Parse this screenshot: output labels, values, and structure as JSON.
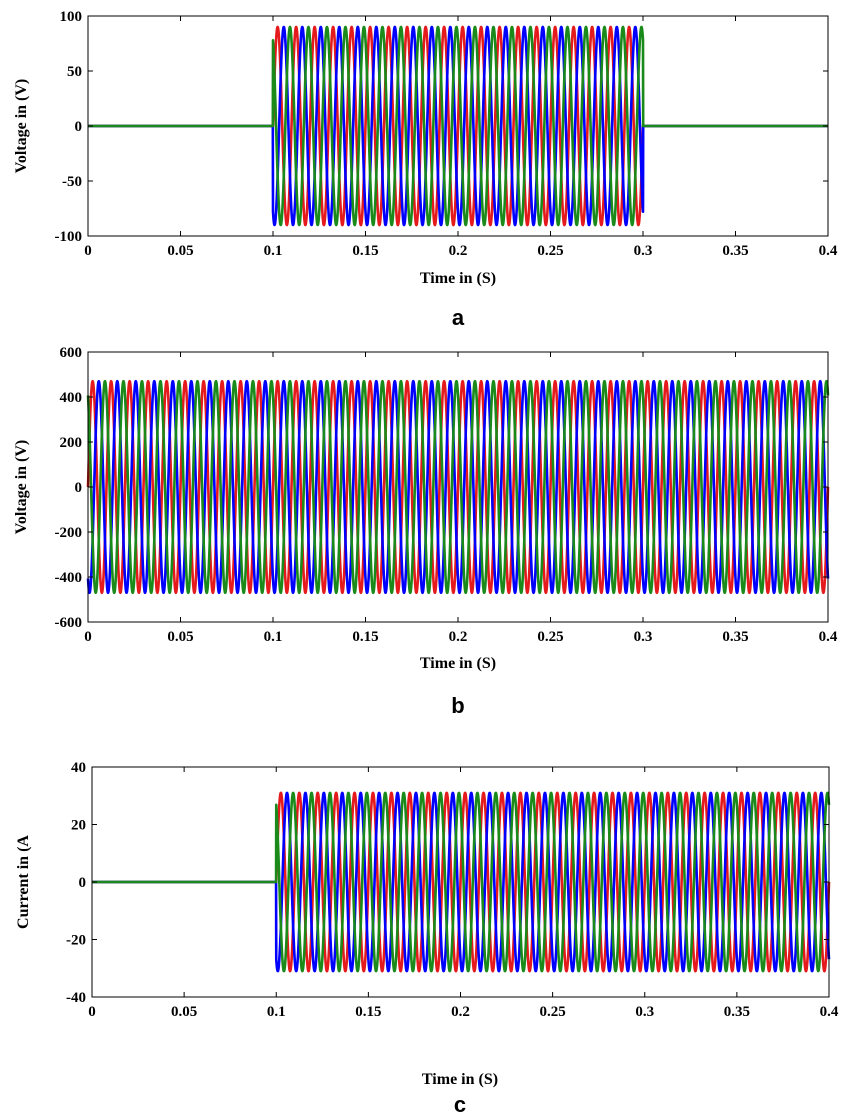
{
  "chart_data": [
    {
      "type": "line",
      "panel_label": "a",
      "xlabel": "Time in (S)",
      "ylabel": "Voltage in (V)",
      "xlim": [
        0,
        0.4
      ],
      "ylim": [
        -100,
        100
      ],
      "xticks": [
        "0",
        "0.05",
        "0.1",
        "0.15",
        "0.2",
        "0.25",
        "0.3",
        "0.35",
        "0.4"
      ],
      "yticks": [
        "100",
        "50",
        "0",
        "-50",
        "-100"
      ],
      "grid": false,
      "frequency_hz": 100,
      "amplitude": 90,
      "active_interval": [
        0.1,
        0.3
      ],
      "series": [
        {
          "color": "#e41a1c",
          "phase_deg": 0
        },
        {
          "color": "#0000ff",
          "phase_deg": -120
        },
        {
          "color": "#1a8a1a",
          "phase_deg": 120
        }
      ]
    },
    {
      "type": "line",
      "panel_label": "b",
      "xlabel": "Time in (S)",
      "ylabel": "Voltage in (V)",
      "xlim": [
        0,
        0.4
      ],
      "ylim": [
        -600,
        600
      ],
      "xticks": [
        "0",
        "0.05",
        "0.1",
        "0.15",
        "0.2",
        "0.25",
        "0.3",
        "0.35",
        "0.4"
      ],
      "yticks": [
        "600",
        "400",
        "200",
        "0",
        "-200",
        "-400",
        "-600"
      ],
      "grid": false,
      "frequency_hz": 100,
      "amplitude": 470,
      "active_interval": [
        0,
        0.4
      ],
      "series": [
        {
          "color": "#e41a1c",
          "phase_deg": 0
        },
        {
          "color": "#0000ff",
          "phase_deg": -120
        },
        {
          "color": "#1a8a1a",
          "phase_deg": 120
        }
      ]
    },
    {
      "type": "line",
      "panel_label": "c",
      "xlabel": "Time in (S)",
      "ylabel": "Current in (A",
      "xlim": [
        0,
        0.4
      ],
      "ylim": [
        -40,
        40
      ],
      "xticks": [
        "0",
        "0.05",
        "0.1",
        "0.15",
        "0.2",
        "0.25",
        "0.3",
        "0.35",
        "0.4"
      ],
      "yticks": [
        "40",
        "20",
        "0",
        "-20",
        "-40"
      ],
      "grid": false,
      "frequency_hz": 100,
      "amplitude": 31,
      "active_interval": [
        0.1,
        0.4
      ],
      "series": [
        {
          "color": "#e41a1c",
          "phase_deg": 0
        },
        {
          "color": "#0000ff",
          "phase_deg": -120
        },
        {
          "color": "#1a8a1a",
          "phase_deg": 120
        }
      ]
    }
  ]
}
